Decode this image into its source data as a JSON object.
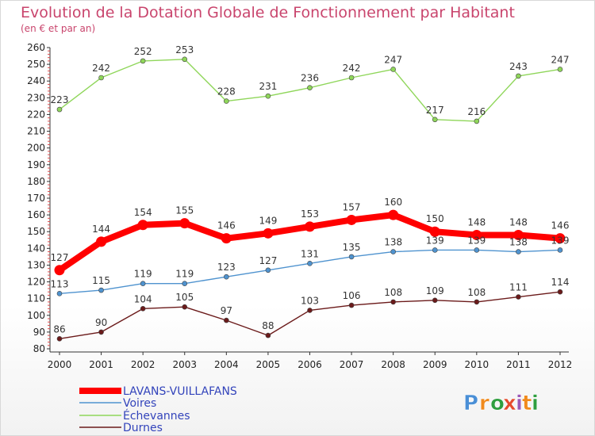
{
  "chart_data": {
    "type": "line",
    "title": "Evolution de la Dotation Globale de Fonctionnement par Habitant",
    "subtitle": "(en € et par an)",
    "x": [
      "2000",
      "2001",
      "2002",
      "2003",
      "2004",
      "2005",
      "2006",
      "2007",
      "2008",
      "2009",
      "2010",
      "2011",
      "2012"
    ],
    "ylim": [
      80,
      260
    ],
    "ytick_step": 10,
    "grid": false,
    "legend_position": "bottom-left",
    "series": [
      {
        "name": "LAVANS-VUILLAFANS",
        "color": "#ff0000",
        "values": [
          127,
          144,
          154,
          155,
          146,
          149,
          153,
          157,
          160,
          150,
          148,
          148,
          146
        ]
      },
      {
        "name": "Voires",
        "color": "#4f93cf",
        "values": [
          113,
          115,
          119,
          119,
          123,
          127,
          131,
          135,
          138,
          139,
          139,
          138,
          139
        ]
      },
      {
        "name": "Échevannes",
        "color": "#8fd65a",
        "values": [
          223,
          242,
          252,
          253,
          228,
          231,
          236,
          242,
          247,
          217,
          216,
          243,
          247
        ]
      },
      {
        "name": "Durnes",
        "color": "#6b1a1a",
        "values": [
          86,
          90,
          104,
          105,
          97,
          88,
          103,
          106,
          108,
          109,
          108,
          111,
          114
        ]
      }
    ],
    "data_labels": [
      [
        "127",
        "144",
        "154",
        "155",
        "146",
        "149",
        "153",
        "157",
        "160",
        "150",
        "148",
        "148",
        "146"
      ],
      [
        "113",
        "115",
        "119",
        "119",
        "123",
        "127",
        "131",
        "135",
        "138",
        "139",
        "139",
        "138",
        "139"
      ],
      [
        "223",
        "242",
        "252",
        "253",
        "228",
        "231",
        "236",
        "242",
        "247",
        "217",
        "216",
        "243",
        "247"
      ],
      [
        "86",
        "90",
        "104",
        "105",
        "97",
        "88",
        "103",
        "106",
        "108",
        "109",
        "108",
        "111",
        "114"
      ]
    ]
  },
  "brand": {
    "letters": [
      "P",
      "r",
      "o",
      "x",
      "i",
      "t",
      "i"
    ],
    "colors": [
      "#4a8fd6",
      "#f08a1c",
      "#2f9e3f",
      "#e54b2d",
      "#9b59b6",
      "#f08a1c",
      "#2f9e3f"
    ]
  }
}
